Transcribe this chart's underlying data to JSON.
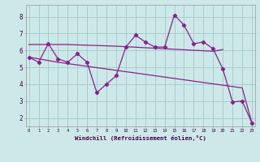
{
  "xlabel": "Windchill (Refroidissement éolien,°C)",
  "background_color": "#cce8e8",
  "grid_color": "#aacccc",
  "line_color": "#882288",
  "x_data": [
    0,
    1,
    2,
    3,
    4,
    5,
    6,
    7,
    8,
    9,
    10,
    11,
    12,
    13,
    14,
    15,
    16,
    17,
    18,
    19,
    20,
    21,
    22,
    23
  ],
  "y_main": [
    5.6,
    5.3,
    6.4,
    5.5,
    5.3,
    5.8,
    5.3,
    3.5,
    4.0,
    4.5,
    6.2,
    6.9,
    6.5,
    6.2,
    6.2,
    8.1,
    7.5,
    6.4,
    6.5,
    6.1,
    4.9,
    2.95,
    3.0,
    1.7
  ],
  "y_line1": [
    6.35,
    6.35,
    6.35,
    6.35,
    6.35,
    6.33,
    6.31,
    6.29,
    6.27,
    6.25,
    6.22,
    6.19,
    6.16,
    6.13,
    6.1,
    6.07,
    6.04,
    6.01,
    5.98,
    5.95,
    6.05
  ],
  "y_line2": [
    5.6,
    5.5,
    5.4,
    5.3,
    5.22,
    5.14,
    5.06,
    4.98,
    4.9,
    4.82,
    4.74,
    4.66,
    4.58,
    4.5,
    4.42,
    4.34,
    4.26,
    4.18,
    4.1,
    4.02,
    3.94,
    3.86,
    3.78,
    1.7
  ],
  "x_line1": [
    0,
    1,
    2,
    3,
    4,
    5,
    6,
    7,
    8,
    9,
    10,
    11,
    12,
    13,
    14,
    15,
    16,
    17,
    18,
    19,
    20
  ],
  "ylim": [
    1.5,
    8.7
  ],
  "xlim": [
    -0.3,
    23.3
  ]
}
